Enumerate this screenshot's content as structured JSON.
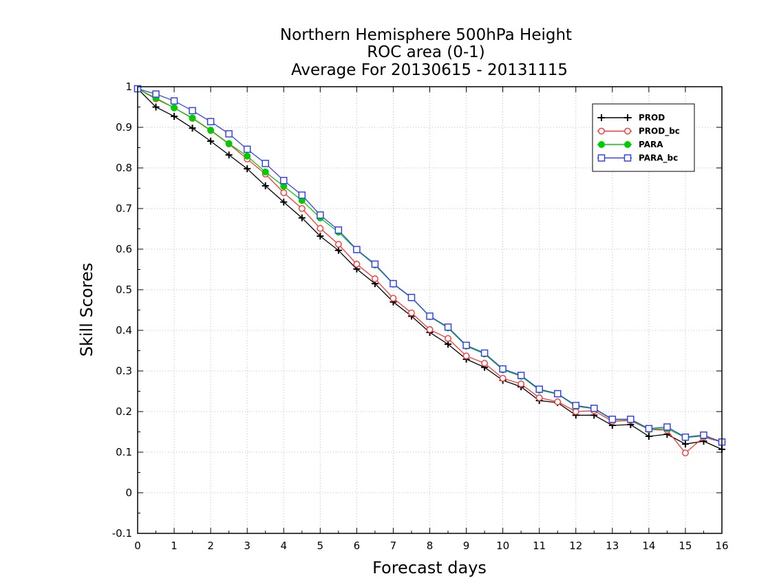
{
  "chart_data": {
    "type": "line",
    "title": [
      "Northern Hemisphere 500hPa Height",
      "ROC area (0-1)",
      "Average For 20130615 - 20131115"
    ],
    "xlabel": "Forecast days",
    "ylabel": "Skill Scores",
    "xlim": [
      0,
      16
    ],
    "ylim": [
      -0.1,
      1
    ],
    "xticks": [
      0,
      1,
      2,
      3,
      4,
      5,
      6,
      7,
      8,
      9,
      10,
      11,
      12,
      13,
      14,
      15,
      16
    ],
    "yticks": [
      -0.1,
      0,
      0.1,
      0.2,
      0.3,
      0.4,
      0.5,
      0.6,
      0.7,
      0.8,
      0.9,
      1
    ],
    "ytick_labels": [
      "-0.1",
      "0",
      "0.1",
      "0.2",
      "0.3",
      "0.4",
      "0.5",
      "0.6",
      "0.7",
      "0.8",
      "0.9",
      "1"
    ],
    "grid": true,
    "legend_position": "top-right",
    "x": [
      0,
      0.5,
      1,
      1.5,
      2,
      2.5,
      3,
      3.5,
      4,
      4.5,
      5,
      5.5,
      6,
      6.5,
      7,
      7.5,
      8,
      8.5,
      9,
      9.5,
      10,
      10.5,
      11,
      11.5,
      12,
      12.5,
      13,
      13.5,
      14,
      14.5,
      15,
      15.5,
      16
    ],
    "series": [
      {
        "name": "PROD",
        "color": "#000000",
        "marker": "plus",
        "values": [
          0.995,
          0.95,
          0.927,
          0.898,
          0.866,
          0.832,
          0.798,
          0.756,
          0.716,
          0.677,
          0.632,
          0.597,
          0.551,
          0.515,
          0.47,
          0.435,
          0.395,
          0.366,
          0.329,
          0.309,
          0.277,
          0.261,
          0.227,
          0.222,
          0.191,
          0.191,
          0.166,
          0.168,
          0.139,
          0.144,
          0.12,
          0.127,
          0.107
        ]
      },
      {
        "name": "PROD_bc",
        "color": "#ff3333",
        "marker": "circle",
        "values": [
          0.995,
          0.97,
          0.948,
          0.922,
          0.892,
          0.859,
          0.822,
          0.785,
          0.739,
          0.7,
          0.651,
          0.612,
          0.563,
          0.527,
          0.479,
          0.443,
          0.402,
          0.38,
          0.337,
          0.319,
          0.282,
          0.268,
          0.234,
          0.224,
          0.2,
          0.202,
          0.176,
          0.178,
          0.156,
          0.154,
          0.098,
          0.137,
          0.125
        ]
      },
      {
        "name": "PARA",
        "color": "#00cc00",
        "marker": "filled-circle",
        "values": [
          0.995,
          0.972,
          0.948,
          0.923,
          0.893,
          0.86,
          0.829,
          0.79,
          0.755,
          0.72,
          0.677,
          0.642,
          0.598,
          0.561,
          0.514,
          0.48,
          0.434,
          0.406,
          0.361,
          0.342,
          0.303,
          0.287,
          0.253,
          0.243,
          0.213,
          0.207,
          0.18,
          0.18,
          0.156,
          0.158,
          0.136,
          0.14,
          0.126
        ]
      },
      {
        "name": "PARA_bc",
        "color": "#3344ee",
        "marker": "square",
        "values": [
          0.995,
          0.982,
          0.965,
          0.941,
          0.914,
          0.884,
          0.846,
          0.811,
          0.769,
          0.733,
          0.684,
          0.647,
          0.599,
          0.563,
          0.515,
          0.481,
          0.435,
          0.408,
          0.363,
          0.344,
          0.305,
          0.289,
          0.255,
          0.244,
          0.215,
          0.208,
          0.181,
          0.181,
          0.158,
          0.162,
          0.137,
          0.142,
          0.125
        ]
      }
    ]
  }
}
